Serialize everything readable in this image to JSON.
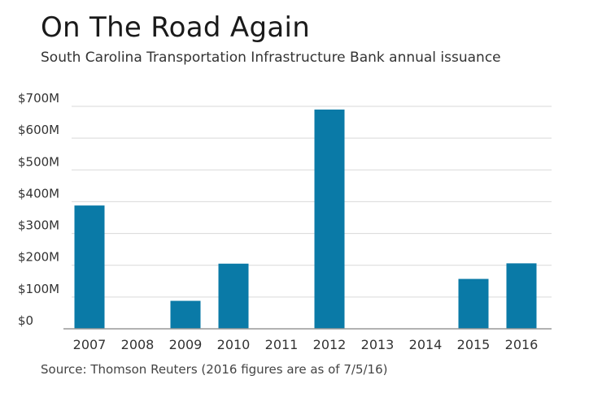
{
  "header": {
    "title": "On The Road Again",
    "subtitle": "South Carolina Transportation Infrastructure Bank annual issuance"
  },
  "footer": {
    "source": "Source: Thomson Reuters (2016 figures are as of 7/5/16)"
  },
  "colors": {
    "bar": "#0a7aa7",
    "grid": "#d9d9d9",
    "axis": "#999999",
    "text": "#333333"
  },
  "chart_data": {
    "type": "bar",
    "title": "On The Road Again",
    "subtitle": "South Carolina Transportation Infrastructure Bank annual issuance",
    "xlabel": "",
    "ylabel": "",
    "categories": [
      "2007",
      "2008",
      "2009",
      "2010",
      "2011",
      "2012",
      "2013",
      "2014",
      "2015",
      "2016"
    ],
    "values": [
      388,
      0,
      88,
      205,
      0,
      690,
      0,
      0,
      157,
      206
    ],
    "unit": "millions USD",
    "ylim": [
      0,
      700
    ],
    "yticks": [
      0,
      100,
      200,
      300,
      400,
      500,
      600,
      700
    ],
    "ytick_labels": [
      "$0",
      "$100M",
      "$200M",
      "$300M",
      "$400M",
      "$500M",
      "$600M",
      "$700M"
    ],
    "grid": true,
    "legend": "none"
  }
}
